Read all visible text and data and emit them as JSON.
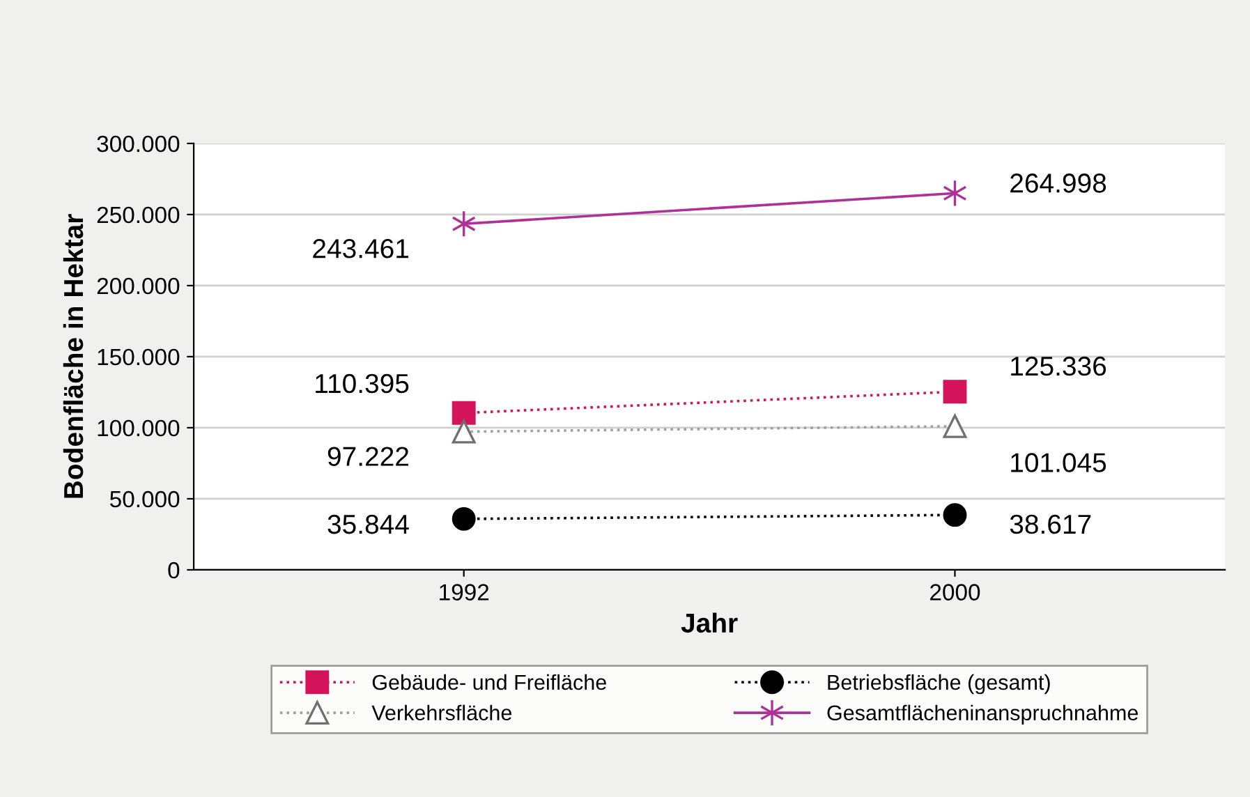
{
  "chart_data": {
    "type": "line",
    "xlabel": "Jahr",
    "ylabel": "Bodenfläche in Hektar",
    "categories": [
      "1992",
      "2000"
    ],
    "series": [
      {
        "name": "Gebäude- und Freifläche",
        "color": "#d4145a",
        "values": [
          110395,
          125336
        ],
        "value_labels": [
          "110.395",
          "125.336"
        ],
        "marker": "square",
        "line_style": "dotted"
      },
      {
        "name": "Verkehrsfläche",
        "color": "#a0a0a0",
        "values": [
          97222,
          101045
        ],
        "value_labels": [
          "97.222",
          "101.045"
        ],
        "marker": "triangle",
        "line_style": "dotted"
      },
      {
        "name": "Betriebsfläche (gesamt)",
        "color": "#000000",
        "values": [
          35844,
          38617
        ],
        "value_labels": [
          "35.844",
          "38.617"
        ],
        "marker": "circle",
        "line_style": "dotted"
      },
      {
        "name": "Gesamtflächeninanspruchnahme",
        "color": "#b0309a",
        "values": [
          243461,
          264998
        ],
        "value_labels": [
          "243.461",
          "264.998"
        ],
        "marker": "cross",
        "line_style": "solid"
      }
    ],
    "ylim": [
      0,
      300000
    ],
    "yticks": [
      {
        "value": 0,
        "label": "0"
      },
      {
        "value": 50000,
        "label": "50.000"
      },
      {
        "value": 100000,
        "label": "100.000"
      },
      {
        "value": 150000,
        "label": "150.000"
      },
      {
        "value": 200000,
        "label": "200.000"
      },
      {
        "value": 250000,
        "label": "250.000"
      },
      {
        "value": 300000,
        "label": "300.000"
      }
    ],
    "grid": "y",
    "legend": "bottom"
  }
}
